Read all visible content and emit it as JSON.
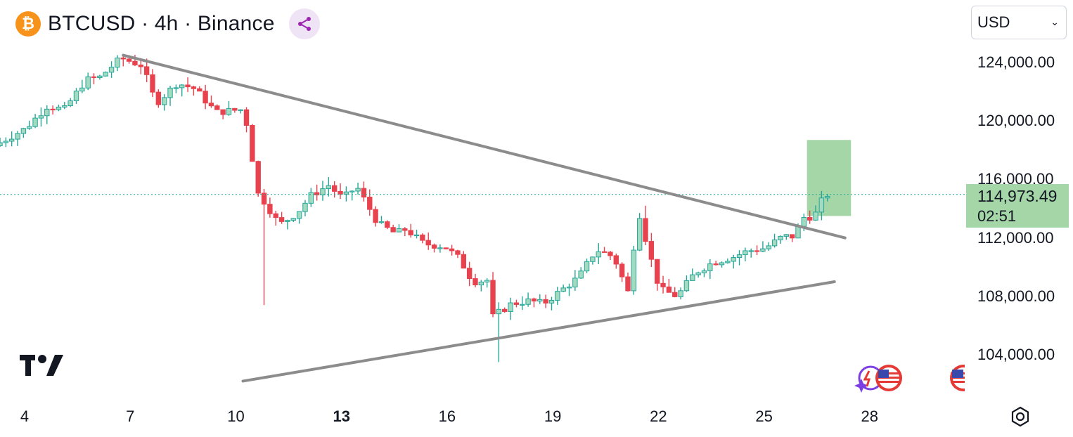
{
  "header": {
    "symbol_icon": "bitcoin-icon",
    "title": "BTCUSD · 4h · Binance",
    "share_icon": "share-icon"
  },
  "currency_select": {
    "value": "USD"
  },
  "colors": {
    "up": "#26a69a",
    "up_fill": "#a3dbc0",
    "down": "#e8424e",
    "trendline": "#8c8c8c",
    "target_box": "#a5d6a7",
    "price_line": "#22ab94"
  },
  "chart_data": {
    "type": "candlestick",
    "symbol": "BTCUSD",
    "interval": "4h",
    "exchange": "Binance",
    "last_price": "114,973.49",
    "countdown": "02:51",
    "y_axis": {
      "range": [
        101000,
        126500
      ],
      "ticks": [
        "124,000.00",
        "120,000.00",
        "116,000.00",
        "112,000.00",
        "108,000.00",
        "104,000.00"
      ]
    },
    "x_axis": {
      "start_day": 3.3,
      "end_day": 30.7,
      "ticks": [
        {
          "day": 4,
          "label": "4"
        },
        {
          "day": 7,
          "label": "7"
        },
        {
          "day": 10,
          "label": "10"
        },
        {
          "day": 13,
          "label": "13",
          "bold": true
        },
        {
          "day": 16,
          "label": "16"
        },
        {
          "day": 19,
          "label": "19"
        },
        {
          "day": 22,
          "label": "22"
        },
        {
          "day": 25,
          "label": "25"
        },
        {
          "day": 28,
          "label": "28"
        }
      ]
    },
    "anchors": [
      [
        3.3,
        118300
      ],
      [
        4.2,
        119500
      ],
      [
        4.8,
        121000
      ],
      [
        5.3,
        120800
      ],
      [
        5.9,
        122800
      ],
      [
        6.3,
        123000
      ],
      [
        6.9,
        124300
      ],
      [
        7.5,
        123800
      ],
      [
        7.9,
        121200
      ],
      [
        8.5,
        122600
      ],
      [
        9.0,
        122200
      ],
      [
        9.6,
        120600
      ],
      [
        10.4,
        120800
      ],
      [
        10.8,
        115000
      ],
      [
        11.0,
        114400
      ],
      [
        11.4,
        112900
      ],
      [
        11.9,
        113700
      ],
      [
        12.3,
        114900
      ],
      [
        12.8,
        115600
      ],
      [
        13.2,
        114700
      ],
      [
        13.6,
        115500
      ],
      [
        14.2,
        113000
      ],
      [
        14.7,
        112300
      ],
      [
        15.0,
        112600
      ],
      [
        15.5,
        111600
      ],
      [
        16.1,
        111400
      ],
      [
        16.5,
        110600
      ],
      [
        16.9,
        109000
      ],
      [
        17.3,
        109100
      ],
      [
        17.4,
        106500
      ],
      [
        18.0,
        107500
      ],
      [
        18.5,
        107700
      ],
      [
        18.9,
        107500
      ],
      [
        19.4,
        108400
      ],
      [
        19.9,
        109300
      ],
      [
        20.4,
        111200
      ],
      [
        20.9,
        110700
      ],
      [
        21.3,
        108300
      ],
      [
        21.6,
        113900
      ],
      [
        21.9,
        111000
      ],
      [
        22.2,
        108500
      ],
      [
        22.7,
        108000
      ],
      [
        23.2,
        109600
      ],
      [
        23.7,
        110300
      ],
      [
        24.3,
        110700
      ],
      [
        24.7,
        111100
      ],
      [
        25.2,
        111300
      ],
      [
        25.7,
        112100
      ],
      [
        26.0,
        112100
      ],
      [
        26.3,
        113400
      ],
      [
        26.6,
        113500
      ],
      [
        26.8,
        114500
      ],
      [
        26.95,
        114973
      ]
    ],
    "wicks": [
      {
        "day": 10.85,
        "low": 107400
      },
      {
        "day": 17.4,
        "low": 103500
      },
      {
        "day": 21.65,
        "high": 114200
      }
    ],
    "trendlines": [
      {
        "name": "descending resistance",
        "from": [
          6.8,
          124500
        ],
        "to": [
          27.3,
          112000
        ]
      },
      {
        "name": "ascending support",
        "from": [
          10.2,
          102200
        ],
        "to": [
          27.0,
          109000
        ]
      }
    ],
    "target_box": {
      "x_from": 26.22,
      "x_to": 27.47,
      "y_from": 113500,
      "y_to": 118700
    },
    "current_price": 114973.49
  },
  "footer": {
    "tradingview_logo": "tradingview-logo",
    "settings_icon": "settings-icon",
    "event_icons": [
      "us-flag-event-icon",
      "us-flag-event-icon"
    ]
  }
}
